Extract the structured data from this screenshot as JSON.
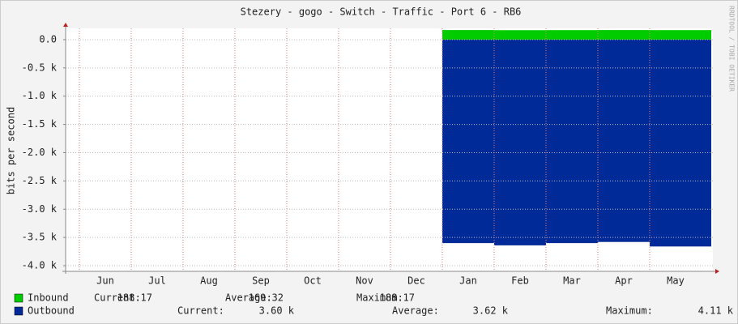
{
  "chart_data": {
    "type": "area",
    "title": "Stezery - gogo - Switch - Traffic - Port  6 - RB6",
    "ylabel": "bits per second",
    "watermark": "RRDTOOL / TOBI OETIKER",
    "categories": [
      "Jun",
      "Jul",
      "Aug",
      "Sep",
      "Oct",
      "Nov",
      "Dec",
      "Jan",
      "Feb",
      "Mar",
      "Apr",
      "May"
    ],
    "series": [
      {
        "name": "Inbound",
        "color": "#00cc00",
        "values": [
          null,
          null,
          null,
          null,
          null,
          null,
          null,
          170,
          168,
          169,
          170,
          169
        ],
        "stats": [
          {
            "label": "Current:",
            "value": "188.17"
          },
          {
            "label": "Average:",
            "value": "169.32"
          },
          {
            "label": "Maximum:",
            "value": "188.17"
          }
        ]
      },
      {
        "name": "Outbound",
        "color": "#002a97",
        "values": [
          null,
          null,
          null,
          null,
          null,
          null,
          null,
          -3600,
          -3640,
          -3600,
          -3580,
          -3660
        ],
        "stats": [
          {
            "label": "Current:",
            "value": "3.60 k"
          },
          {
            "label": "Average:",
            "value": "3.62 k"
          },
          {
            "label": "Maximum:",
            "value": "4.11 k"
          }
        ]
      }
    ],
    "ylim": [
      -4100,
      200
    ],
    "yticks": [
      {
        "value": 0,
        "label": "0.0"
      },
      {
        "value": -500,
        "label": "-0.5 k"
      },
      {
        "value": -1000,
        "label": "-1.0 k"
      },
      {
        "value": -1500,
        "label": "-1.5 k"
      },
      {
        "value": -2000,
        "label": "-2.0 k"
      },
      {
        "value": -2500,
        "label": "-2.5 k"
      },
      {
        "value": -3000,
        "label": "-3.0 k"
      },
      {
        "value": -3500,
        "label": "-3.5 k"
      },
      {
        "value": -4000,
        "label": "-4.0 k"
      }
    ],
    "grid": true
  }
}
